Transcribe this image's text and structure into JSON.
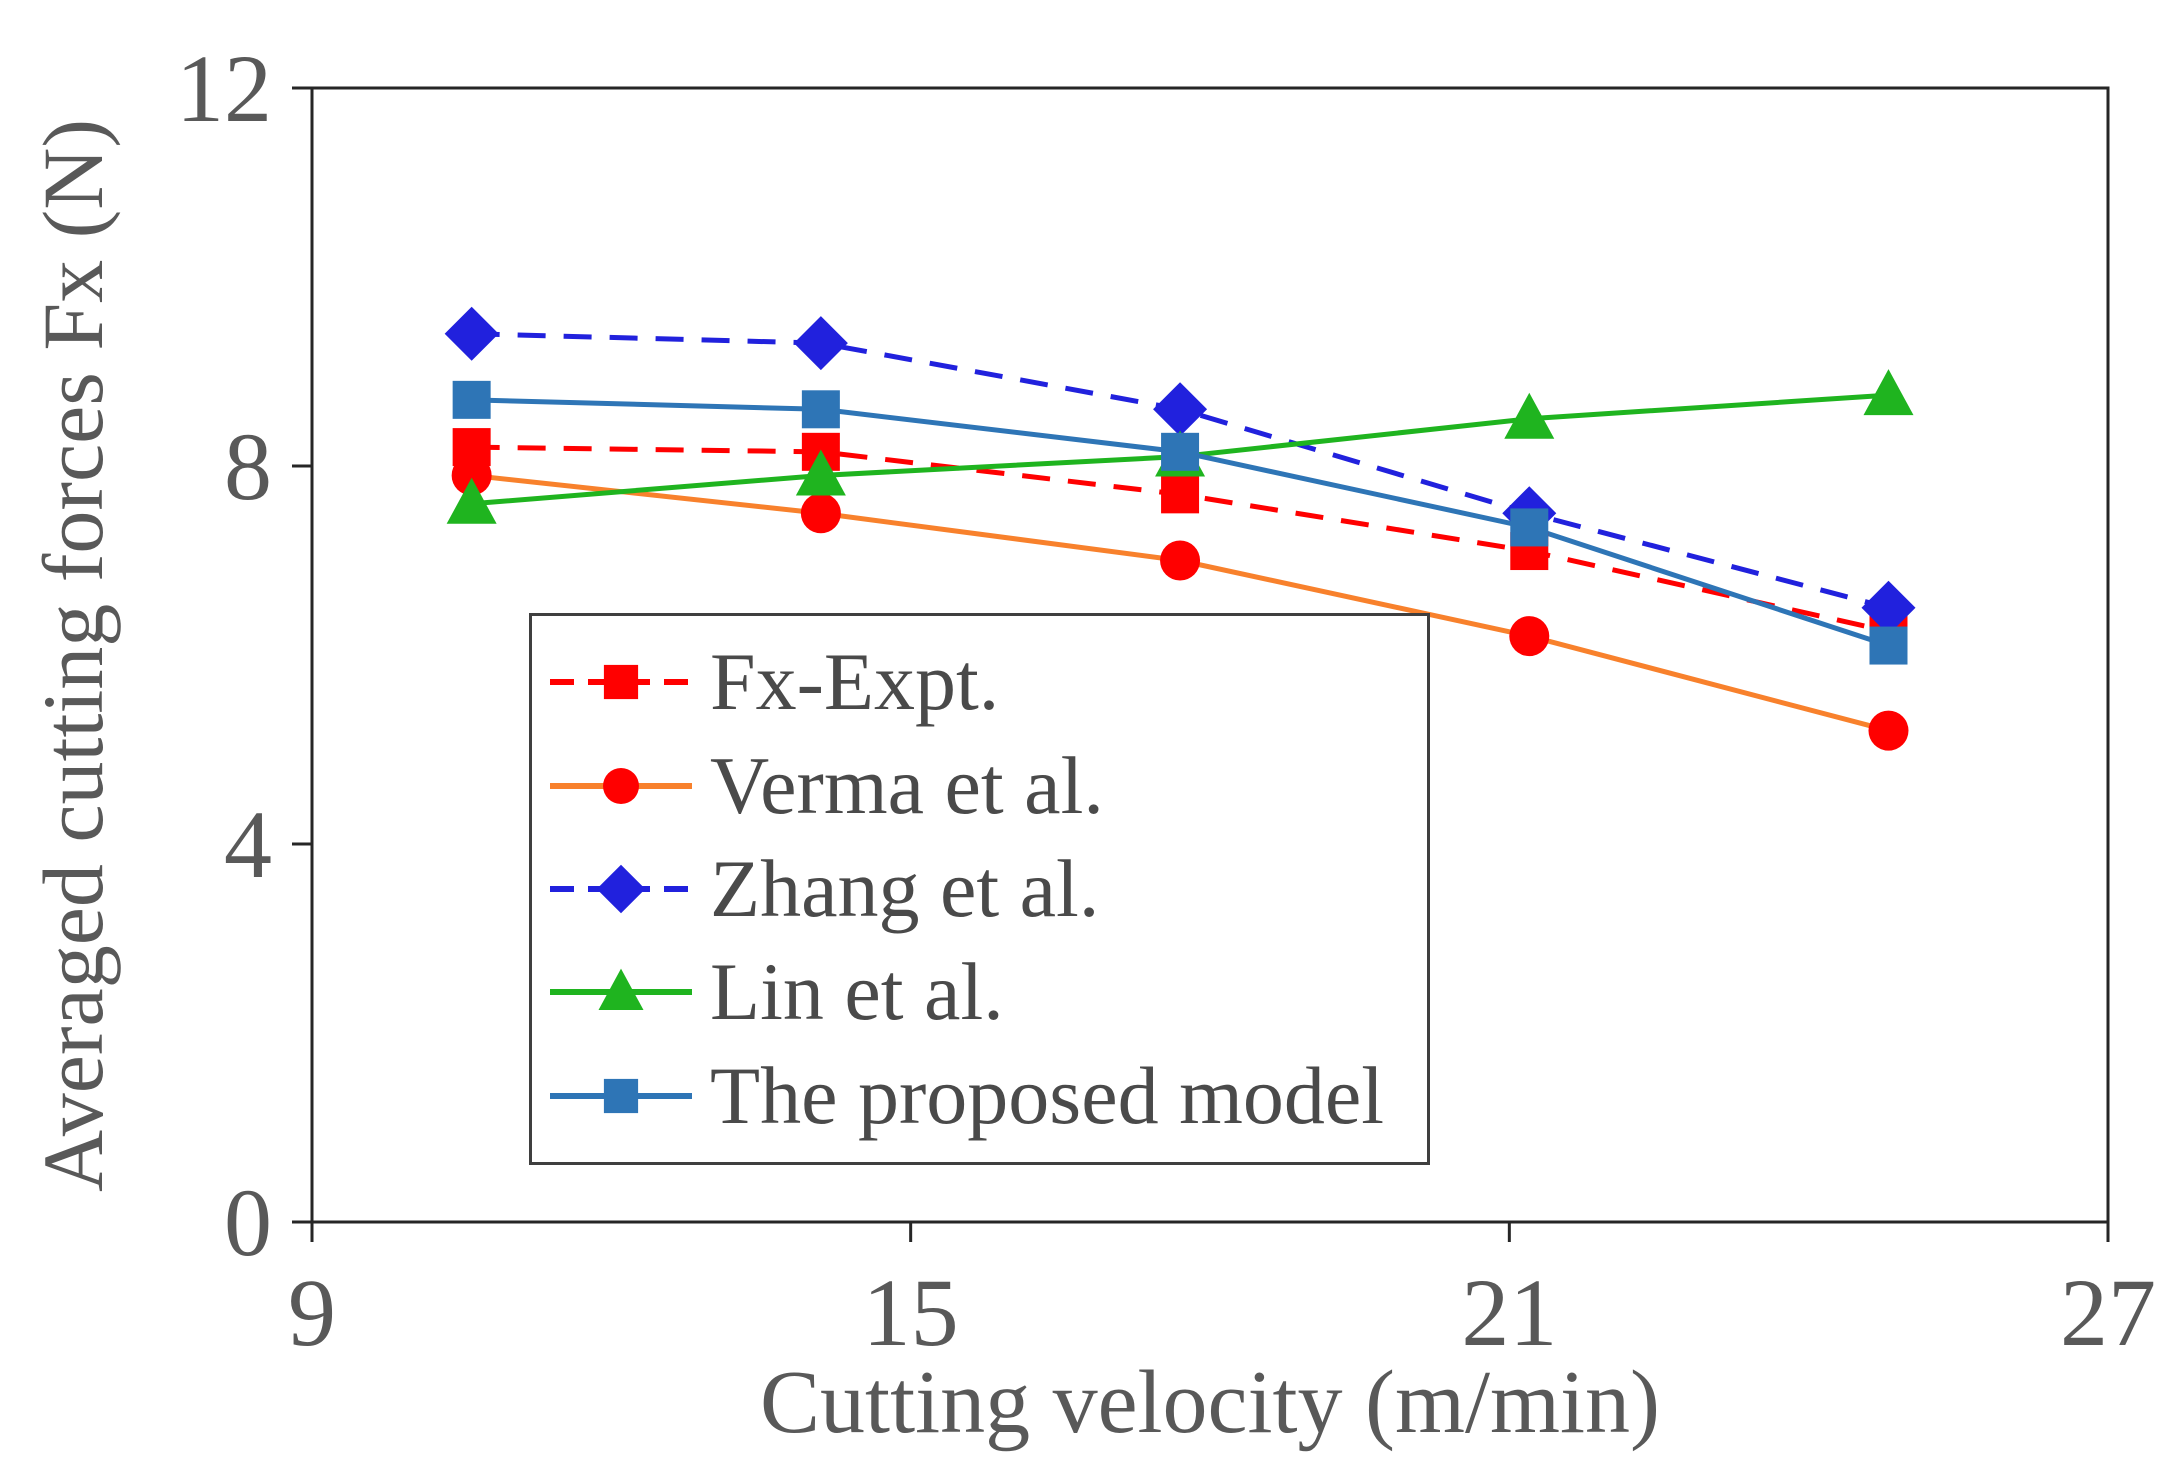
{
  "chart_data": {
    "type": "line",
    "title": "",
    "xlabel": "Cutting velocity (m/min)",
    "ylabel": "Averaged cutting forces Fx (N)",
    "xlim": [
      9,
      27
    ],
    "ylim": [
      0,
      12
    ],
    "xticks": [
      9,
      15,
      21,
      27
    ],
    "yticks": [
      0,
      4,
      8,
      12
    ],
    "grid": false,
    "legend_position": "inside-lower-left-box",
    "x": [
      10.6,
      14.1,
      17.7,
      21.2,
      24.8
    ],
    "series": [
      {
        "name": "Fx-Expt.",
        "values": [
          8.2,
          8.15,
          7.7,
          7.1,
          6.25
        ],
        "color": "#FF0000",
        "line_style": "dashed",
        "marker": "square",
        "marker_color": "#FF0000"
      },
      {
        "name": "Verma et al.",
        "values": [
          7.9,
          7.5,
          7.0,
          6.2,
          5.2
        ],
        "color": "#F8812C",
        "line_style": "solid",
        "marker": "circle",
        "marker_color": "#FF0000"
      },
      {
        "name": "Zhang et al.",
        "values": [
          9.4,
          9.3,
          8.6,
          7.5,
          6.5
        ],
        "color": "#2121DD",
        "line_style": "dashed",
        "marker": "diamond",
        "marker_color": "#2121DD"
      },
      {
        "name": "Lin et al.",
        "values": [
          7.6,
          7.9,
          8.1,
          8.5,
          8.75
        ],
        "color": "#1FB41F",
        "line_style": "solid",
        "marker": "triangle",
        "marker_color": "#1FB41F"
      },
      {
        "name": "The proposed model",
        "values": [
          8.7,
          8.6,
          8.15,
          7.35,
          6.1
        ],
        "color": "#2E75B6",
        "line_style": "solid",
        "marker": "square",
        "marker_color": "#2E75B6"
      }
    ],
    "axis_text_color": "#595959",
    "axis_line_color": "#262626"
  }
}
